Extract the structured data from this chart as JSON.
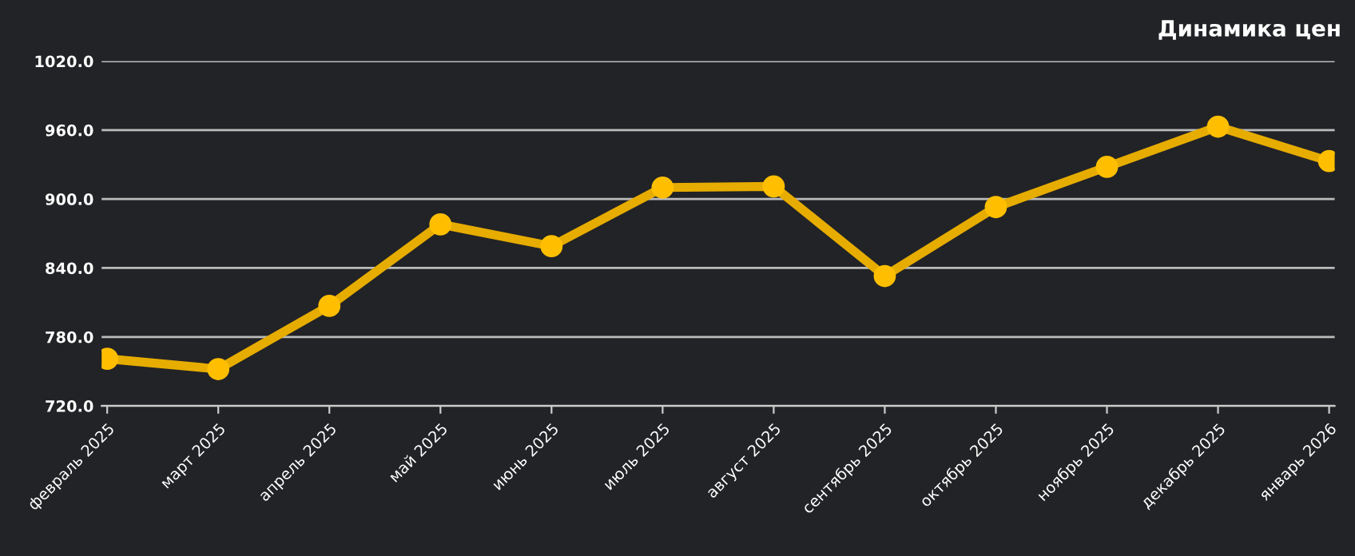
{
  "chart_data": {
    "type": "line",
    "title": "Динамика цен",
    "categories": [
      "февраль 2025",
      "март 2025",
      "апрель 2025",
      "май 2025",
      "июнь 2025",
      "июль 2025",
      "август 2025",
      "сентябрь 2025",
      "октябрь 2025",
      "ноябрь 2025",
      "декабрь 2025",
      "январь 2026"
    ],
    "series": [
      {
        "color": "#e6ac00",
        "values": [
          761,
          752,
          807,
          878,
          859,
          910,
          911,
          833,
          893,
          928,
          963,
          933
        ]
      }
    ],
    "ylim": [
      720,
      1020
    ],
    "yticks": [
      {
        "value": 720,
        "label": "720.0"
      },
      {
        "value": 780,
        "label": "780.0"
      },
      {
        "value": 840,
        "label": "840.0"
      },
      {
        "value": 900,
        "label": "900.0"
      },
      {
        "value": 960,
        "label": "960.0"
      },
      {
        "value": 1020,
        "label": "1020.0"
      }
    ],
    "grid": "y",
    "marker": "circle",
    "line_style": "solid",
    "legend": false
  }
}
